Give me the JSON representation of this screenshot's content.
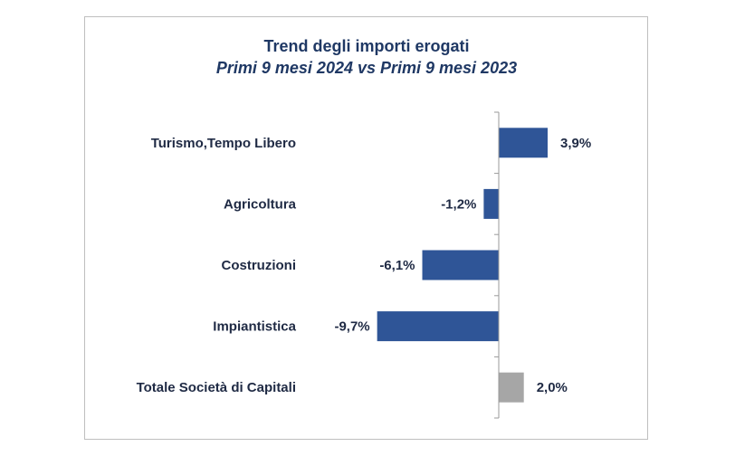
{
  "chart_data": {
    "type": "bar",
    "orientation": "horizontal",
    "title": "Trend degli importi erogati",
    "subtitle": "Primi 9 mesi 2024 vs Primi 9 mesi 2023",
    "categories": [
      "Turismo,Tempo Libero",
      "Agricoltura",
      "Costruzioni",
      "Impiantistica",
      "Totale Società di Capitali"
    ],
    "values": [
      3.9,
      -1.2,
      -6.1,
      -9.7,
      2.0
    ],
    "value_labels": [
      "3,9%",
      "-1,2%",
      "-6,1%",
      "-9,7%",
      "2,0%"
    ],
    "colors": [
      "#2f5597",
      "#2f5597",
      "#2f5597",
      "#2f5597",
      "#a6a6a6"
    ],
    "xlim": [
      -12,
      5
    ],
    "grid": false,
    "legend": "none"
  }
}
